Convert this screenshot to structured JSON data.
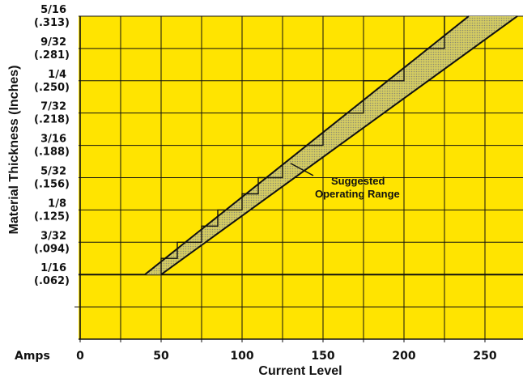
{
  "chart_data": {
    "type": "area",
    "xlabel": "Current Level",
    "ylabel": "Material Thickness (Inches)",
    "x_unit_label": "Amps",
    "xlim": [
      0,
      275
    ],
    "ylim": [
      0.0,
      0.3125
    ],
    "grid": true,
    "background_color": "#ffe400",
    "x_ticks": [
      {
        "value": 0,
        "label": "0"
      },
      {
        "value": 50,
        "label": "50"
      },
      {
        "value": 100,
        "label": "100"
      },
      {
        "value": 150,
        "label": "150"
      },
      {
        "value": 200,
        "label": "200"
      },
      {
        "value": 250,
        "label": "250"
      }
    ],
    "y_ticks": [
      {
        "value": 0.0625,
        "label": "1/16",
        "decimal": "(.062)"
      },
      {
        "value": 0.09375,
        "label": "3/32",
        "decimal": "(.094)"
      },
      {
        "value": 0.125,
        "label": "1/8",
        "decimal": "(.125)"
      },
      {
        "value": 0.15625,
        "label": "5/32",
        "decimal": "(.156)"
      },
      {
        "value": 0.1875,
        "label": "3/16",
        "decimal": "(.188)"
      },
      {
        "value": 0.21875,
        "label": "7/32",
        "decimal": "(.218)"
      },
      {
        "value": 0.25,
        "label": "1/4",
        "decimal": "(.250)"
      },
      {
        "value": 0.28125,
        "label": "9/32",
        "decimal": "(.281)"
      },
      {
        "value": 0.3125,
        "label": "5/16",
        "decimal": "(.313)"
      }
    ],
    "range": {
      "upper_line": [
        [
          40,
          0.0625
        ],
        [
          240,
          0.3125
        ]
      ],
      "lower_line": [
        [
          50,
          0.0625
        ],
        [
          270,
          0.3125
        ]
      ],
      "steps": [
        [
          50,
          0.0625
        ],
        [
          50,
          0.07813
        ],
        [
          60,
          0.07813
        ],
        [
          60,
          0.09375
        ],
        [
          75,
          0.09375
        ],
        [
          75,
          0.1094
        ],
        [
          85,
          0.1094
        ],
        [
          85,
          0.125
        ],
        [
          100,
          0.125
        ],
        [
          100,
          0.1406
        ],
        [
          110,
          0.1406
        ],
        [
          110,
          0.15625
        ],
        [
          125,
          0.15625
        ],
        [
          125,
          0.1875
        ],
        [
          150,
          0.1875
        ],
        [
          150,
          0.21875
        ],
        [
          175,
          0.21875
        ],
        [
          175,
          0.25
        ],
        [
          200,
          0.25
        ],
        [
          200,
          0.28125
        ],
        [
          225,
          0.28125
        ],
        [
          225,
          0.3125
        ]
      ]
    },
    "annotation": {
      "lines": [
        "Suggested",
        "Operating Range"
      ],
      "point": [
        130,
        0.17
      ]
    }
  }
}
